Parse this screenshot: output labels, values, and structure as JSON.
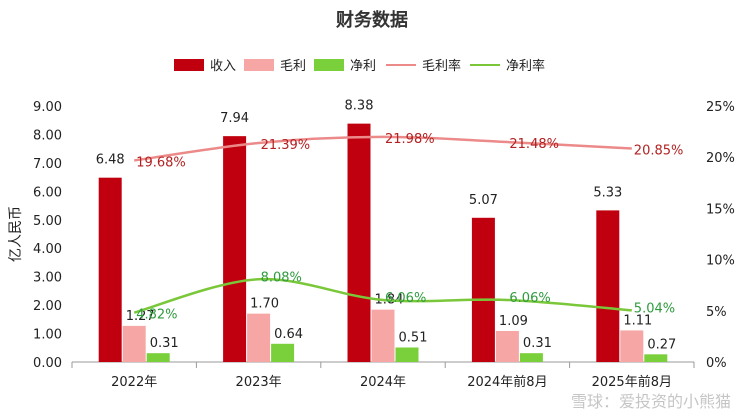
{
  "chart_data": {
    "type": "bar",
    "title": "财务数据",
    "ylabel": "亿人民币",
    "categories": [
      "2022年",
      "2023年",
      "2024年",
      "2024年前8月",
      "2025年前8月"
    ],
    "ylim": [
      0,
      9
    ],
    "yticks": [
      "0.00",
      "1.00",
      "2.00",
      "3.00",
      "4.00",
      "5.00",
      "6.00",
      "7.00",
      "8.00",
      "9.00"
    ],
    "y2lim": [
      0,
      25
    ],
    "y2ticks": [
      "0%",
      "5%",
      "10%",
      "15%",
      "20%",
      "25%"
    ],
    "legend_position": "top",
    "grid": false,
    "series": [
      {
        "name": "收入",
        "kind": "bar",
        "axis": "left",
        "color": "#c0000f",
        "values": [
          6.48,
          7.94,
          8.38,
          5.07,
          5.33
        ],
        "labels": [
          "6.48",
          "7.94",
          "8.38",
          "5.07",
          "5.33"
        ]
      },
      {
        "name": "毛利",
        "kind": "bar",
        "axis": "left",
        "color": "#f6a7a5",
        "values": [
          1.27,
          1.7,
          1.84,
          1.09,
          1.11
        ],
        "labels": [
          "1.27",
          "1.70",
          "1.84",
          "1.09",
          "1.11"
        ]
      },
      {
        "name": "净利",
        "kind": "bar",
        "axis": "left",
        "color": "#7ad03b",
        "values": [
          0.31,
          0.64,
          0.51,
          0.31,
          0.27
        ],
        "labels": [
          "0.31",
          "0.64",
          "0.51",
          "0.31",
          "0.27"
        ]
      },
      {
        "name": "毛利率",
        "kind": "line",
        "axis": "right",
        "color": "#ec8a8a",
        "label_color": "#b22222",
        "values": [
          19.68,
          21.39,
          21.98,
          21.48,
          20.85
        ],
        "labels": [
          "19.68%",
          "21.39%",
          "21.98%",
          "21.48%",
          "20.85%"
        ]
      },
      {
        "name": "净利率",
        "kind": "line",
        "axis": "right",
        "color": "#7ac83a",
        "label_color": "#2e9b3e",
        "values": [
          4.82,
          8.08,
          6.06,
          6.06,
          5.04
        ],
        "labels": [
          "4.82%",
          "8.08%",
          "6.06%",
          "6.06%",
          "5.04%"
        ]
      }
    ]
  },
  "watermark": "雪球：爱投资的小熊猫"
}
